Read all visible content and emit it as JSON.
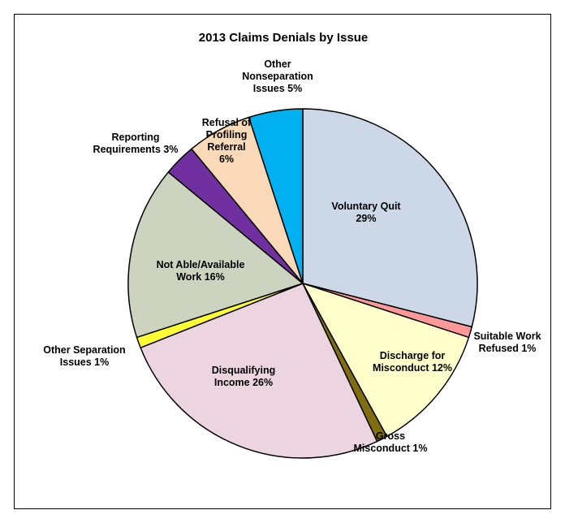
{
  "chart_data": {
    "type": "pie",
    "title": "2013 Claims Denials by Issue",
    "start_angle_deg": 0,
    "direction": "clockwise",
    "slices": [
      {
        "label": [
          "Voluntary Quit",
          "29%"
        ],
        "value": 29,
        "color": "#ccd7e8"
      },
      {
        "label": [
          "Suitable Work",
          "Refused 1%"
        ],
        "value": 1,
        "color": "#ff9999"
      },
      {
        "label": [
          "Discharge for",
          "Misconduct 12%"
        ],
        "value": 12,
        "color": "#ffffcc"
      },
      {
        "label": [
          "Gross",
          "Misconduct 1%"
        ],
        "value": 1,
        "color": "#7f6d10"
      },
      {
        "label": [
          "Disqualifying",
          "Income 26%"
        ],
        "value": 26,
        "color": "#ecd5e1"
      },
      {
        "label": [
          "Other Separation",
          "Issues 1%"
        ],
        "value": 1,
        "color": "#ffff33"
      },
      {
        "label": [
          "Not Able/Available",
          "Work 16%"
        ],
        "value": 16,
        "color": "#ccd4c0"
      },
      {
        "label": [
          "Reporting",
          "Requirements 3%"
        ],
        "value": 3,
        "color": "#7030a0"
      },
      {
        "label": [
          "Refusal of",
          "Profiling",
          "Referral",
          "6%"
        ],
        "value": 6,
        "color": "#fad9b8"
      },
      {
        "label": [
          "Other",
          "Nonseparation",
          "Issues 5%"
        ],
        "value": 5,
        "color": "#00b0f0"
      }
    ]
  }
}
